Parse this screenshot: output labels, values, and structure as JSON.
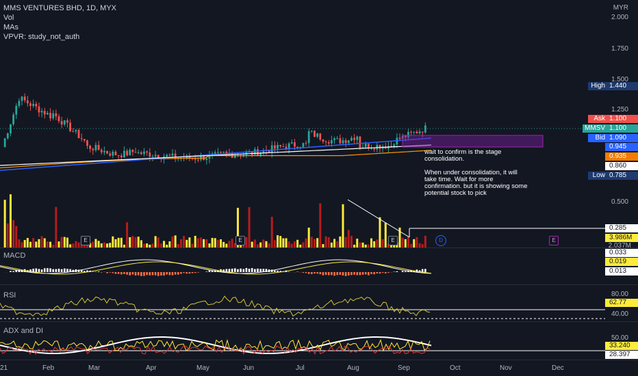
{
  "header": {
    "title": "MMS VENTURES BHD, 1D, MYX",
    "indicators": [
      "Vol",
      "MAs",
      "VPVR: study_not_auth"
    ]
  },
  "currency": "MYR",
  "price_axis_ticks": [
    "2.000",
    "1.750",
    "1.500",
    "1.250",
    "0.500"
  ],
  "quotes": {
    "high": {
      "label": "High",
      "value": "1.440"
    },
    "ask": {
      "label": "Ask",
      "value": "1.100"
    },
    "last": {
      "label": "MMSV",
      "value": "1.100"
    },
    "bid": {
      "label": "Bid",
      "value": "1.090"
    },
    "ma1": "0.945",
    "ma2": "0.935",
    "ma3": "0.860",
    "low": {
      "label": "Low",
      "value": "0.785"
    }
  },
  "volume": {
    "level": "0.285",
    "value": "3.986M",
    "tick_partial": "2.037M"
  },
  "macd": {
    "label": "MACD",
    "values": [
      "0.033",
      "0.019",
      "0.013"
    ]
  },
  "rsi": {
    "label": "RSI",
    "ticks": [
      "80.00",
      "40.00"
    ],
    "value": "62.77"
  },
  "adx": {
    "label": "ADX and DI",
    "tick": "50.00",
    "values": [
      "33.240",
      "28.397"
    ]
  },
  "time_axis": [
    "21",
    "Feb",
    "Mar",
    "Apr",
    "May",
    "Jun",
    "Jul",
    "Aug",
    "Sep",
    "Oct",
    "Nov",
    "Dec"
  ],
  "note": {
    "lines": [
      "wait to confirm is the stage",
      "consolidation.",
      "",
      "When under consolidation, it will",
      "take time. Wait for more",
      "confirmation. but it is showing some",
      "potential stock to pick"
    ]
  },
  "event_markers": {
    "earnings": "E",
    "dividend": "D"
  },
  "colors": {
    "background": "#131722",
    "up": "#26a69a",
    "down": "#ef5350",
    "ma_orange": "#ff9800",
    "ma_blue": "#2962ff",
    "ma_white": "#ffffff",
    "high_badge": "#1e3a6e",
    "ask_badge": "#f0504c",
    "last_badge": "#26a69a",
    "bid_badge": "#2962ff",
    "rsi_line": "#d4c23a",
    "consolidation_box": "#7b1fa2"
  }
}
